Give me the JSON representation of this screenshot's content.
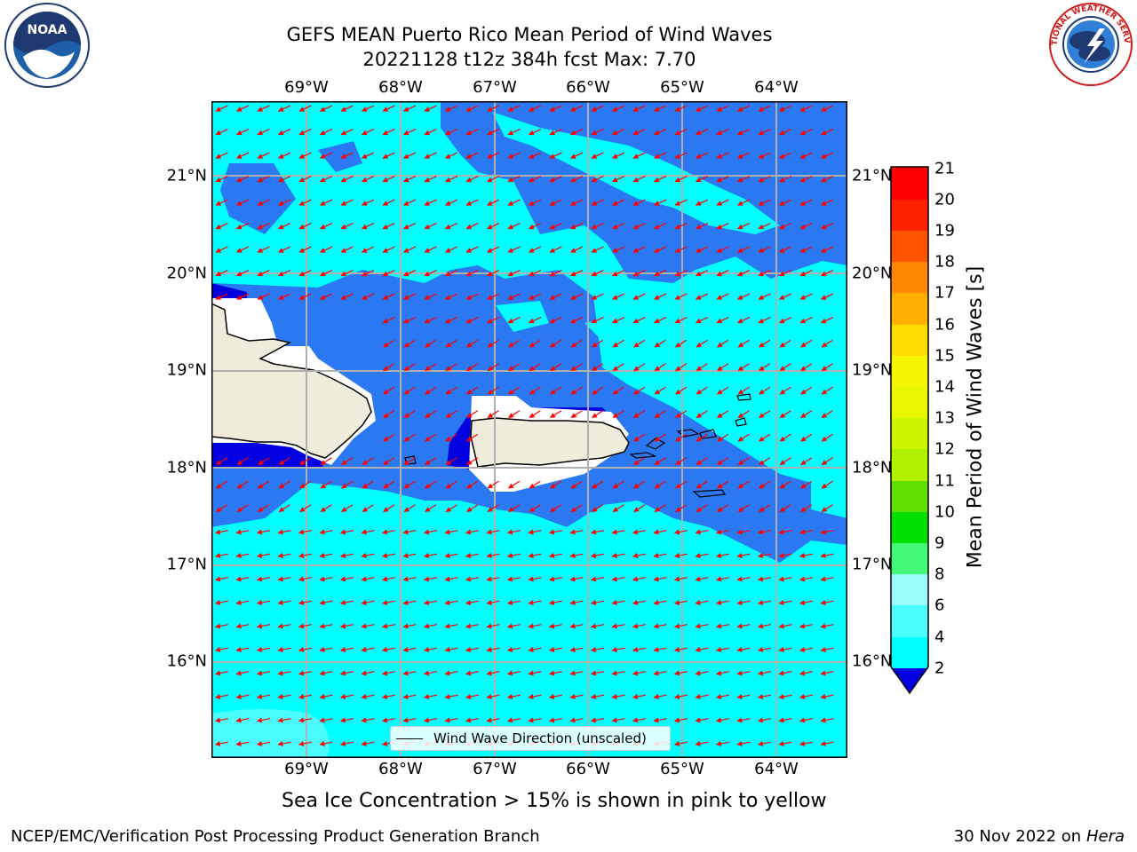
{
  "title": {
    "line1": "GEFS MEAN Puerto Rico Mean Period of Wind Waves",
    "line2": "20221128 t12z 384h fcst   Max: 7.70"
  },
  "axes": {
    "lon_labels": [
      "69°W",
      "68°W",
      "67°W",
      "66°W",
      "65°W",
      "64°W"
    ],
    "lat_labels": [
      "21°N",
      "20°N",
      "19°N",
      "18°N",
      "17°N",
      "16°N"
    ]
  },
  "colorbar": {
    "label": "Mean Period of Wind Waves [s]",
    "ticks": [
      "21",
      "20",
      "19",
      "18",
      "17",
      "16",
      "15",
      "14",
      "13",
      "12",
      "11",
      "10",
      "9",
      "8",
      "6",
      "4",
      "2"
    ],
    "colors": [
      "#0000e0",
      "#2a78f2",
      "#00ffff",
      "#4cfdfd",
      "#9cfdfd",
      "#44f878",
      "#00e000",
      "#60e000",
      "#b0f000",
      "#ccf500",
      "#e8f800",
      "#f5f500",
      "#ffdd00",
      "#ffb000",
      "#ff8800",
      "#ff5500",
      "#ff2200",
      "#ff0000"
    ]
  },
  "legend": {
    "label": "Wind Wave Direction (unscaled)"
  },
  "notes": {
    "sea_ice": "Sea Ice Concentration > 15% is shown in pink to yellow"
  },
  "footer": {
    "left": "NCEP/EMC/Verification Post Processing Product Generation Branch",
    "date": "30 Nov 2022 on",
    "machine": "Hera"
  },
  "logos": {
    "left": {
      "icon": "noaa-logo",
      "text": "NOAA"
    },
    "right": {
      "icon": "nws-logo",
      "text": "NATIONAL WEATHER SERVICE"
    }
  },
  "map_colors": {
    "ocean_light": "#00ffff",
    "ocean_mid": "#2a78f2",
    "ocean_dark": "#0000e0",
    "land": "#efecdc",
    "arrows": "#ff0000",
    "grid": "#b0b0b0"
  }
}
